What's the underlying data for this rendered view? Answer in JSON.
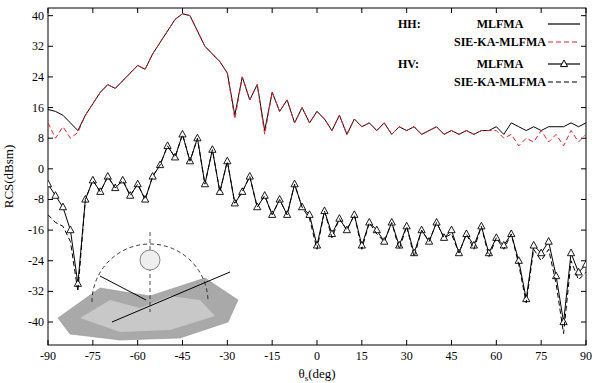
{
  "chart_data": {
    "type": "line",
    "x_label": "θs(deg)",
    "y_label": "RCS(dBsm)",
    "x": [
      -90,
      -87.5,
      -85,
      -82.5,
      -80,
      -77.5,
      -75,
      -72.5,
      -70,
      -67.5,
      -65,
      -62.5,
      -60,
      -57.5,
      -55,
      -52.5,
      -50,
      -47.5,
      -45,
      -42.5,
      -40,
      -37.5,
      -35,
      -32.5,
      -30,
      -27.5,
      -25,
      -22.5,
      -20,
      -17.5,
      -15,
      -12.5,
      -10,
      -7.5,
      -5,
      -2.5,
      0,
      2.5,
      5,
      7.5,
      10,
      12.5,
      15,
      17.5,
      20,
      22.5,
      25,
      27.5,
      30,
      32.5,
      35,
      37.5,
      40,
      42.5,
      45,
      47.5,
      50,
      52.5,
      55,
      57.5,
      60,
      62.5,
      65,
      67.5,
      70,
      72.5,
      75,
      77.5,
      80,
      82.5,
      85,
      87.5,
      90
    ],
    "xlim": [
      -90,
      90
    ],
    "xticks": [
      -90,
      -75,
      -60,
      -45,
      -30,
      -15,
      0,
      15,
      30,
      45,
      60,
      75,
      90
    ],
    "ylim": [
      -46,
      42
    ],
    "yticks": [
      -40,
      -32,
      -24,
      -16,
      -8,
      0,
      8,
      16,
      24,
      32,
      40
    ],
    "legend": "top-right",
    "series": [
      {
        "name": "MLFMA",
        "group": "HH:",
        "color": "#000000",
        "line_style": "solid",
        "marker": "none",
        "values": [
          15.5,
          15,
          14,
          12,
          10,
          14,
          17,
          20,
          22,
          21,
          23,
          25,
          27,
          26,
          30,
          33,
          36,
          39,
          40.5,
          40,
          36,
          32,
          30,
          28,
          25,
          14,
          24,
          18,
          22,
          10,
          20,
          15,
          18,
          12,
          16,
          12,
          15,
          13,
          10,
          14,
          9,
          13,
          11,
          12,
          10,
          12,
          9,
          11,
          10,
          11,
          9,
          10,
          11,
          9,
          10,
          9,
          10,
          9,
          10,
          10,
          11,
          9,
          12,
          11,
          10,
          11,
          10,
          11,
          11,
          11,
          12,
          11,
          12
        ]
      },
      {
        "name": "SIE-KA-MLFMA",
        "group": "HH:",
        "color": "#e8202a",
        "line_style": "dashed",
        "marker": "none",
        "values": [
          12,
          8,
          11,
          8,
          9.5,
          14,
          17,
          20,
          22,
          21,
          23,
          25,
          27,
          26,
          30,
          33,
          36,
          39,
          40.5,
          40,
          36,
          32,
          30,
          28,
          25,
          13,
          24,
          18,
          22,
          9,
          20,
          15,
          18,
          12,
          16,
          12,
          15,
          13,
          10,
          14,
          9,
          13,
          11,
          12,
          10,
          12,
          9,
          11,
          10,
          11,
          9,
          10,
          11,
          9,
          10,
          9,
          10,
          9,
          10,
          10,
          10,
          8,
          9,
          6,
          8,
          7,
          10,
          7,
          9,
          6,
          10,
          7,
          9
        ]
      },
      {
        "name": "MLFMA",
        "group": "HV:",
        "color": "#000000",
        "line_style": "solid",
        "marker": "triangle",
        "values": [
          -4,
          -7,
          -10,
          -16,
          -30,
          -8,
          -3,
          -6,
          -2,
          -5,
          -3,
          -7,
          -4,
          -8,
          -2,
          1,
          6,
          3,
          9,
          2,
          8,
          -4,
          5,
          -6,
          2,
          -9,
          -6,
          -2,
          -10,
          -7,
          -12,
          -8,
          -12,
          -4,
          -10,
          -12,
          -20,
          -11,
          -17,
          -13,
          -16,
          -12,
          -20,
          -14,
          -16,
          -19,
          -14,
          -20,
          -15,
          -22,
          -16,
          -19,
          -14,
          -18,
          -16,
          -22,
          -17,
          -20,
          -15,
          -22,
          -18,
          -20,
          -17,
          -24,
          -34,
          -20,
          -22,
          -19,
          -28,
          -40,
          -22,
          -27,
          -25
        ]
      },
      {
        "name": "SIE-KA-MLFMA",
        "group": "HV:",
        "color": "#000000",
        "line_style": "dashed",
        "marker": "none",
        "values": [
          -12,
          -14,
          -15,
          -19,
          -32,
          -8,
          -3,
          -6,
          -2,
          -5,
          -3,
          -7,
          -4,
          -8,
          -2,
          1,
          6,
          3,
          9,
          2,
          8,
          -4,
          5,
          -6,
          2,
          -9,
          -6,
          -2,
          -10,
          -7,
          -12,
          -8,
          -12,
          -4,
          -10,
          -13,
          -21,
          -11,
          -18,
          -13,
          -16,
          -12,
          -21,
          -14,
          -17,
          -19,
          -14,
          -21,
          -15,
          -23,
          -16,
          -19,
          -14,
          -18,
          -17,
          -22,
          -17,
          -21,
          -15,
          -23,
          -18,
          -21,
          -17,
          -25,
          -35,
          -21,
          -24,
          -21,
          -30,
          -43,
          -24,
          -29,
          -27
        ]
      }
    ]
  }
}
